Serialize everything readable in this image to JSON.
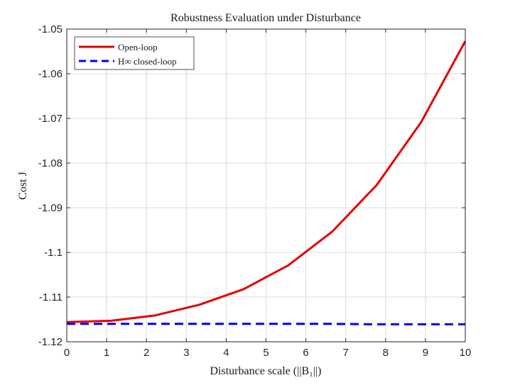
{
  "chart_data": {
    "type": "line",
    "title": "Robustness Evaluation under Disturbance",
    "xlabel": "Disturbance scale (||B₁||)",
    "ylabel": "Cost J",
    "xlim": [
      0,
      10
    ],
    "ylim": [
      -1.12,
      -1.05
    ],
    "x_ticks": [
      "0",
      "1",
      "2",
      "3",
      "4",
      "5",
      "6",
      "7",
      "8",
      "9",
      "10"
    ],
    "y_ticks": [
      "-1.05",
      "-1.06",
      "-1.07",
      "-1.08",
      "-1.09",
      "-1.1",
      "-1.11",
      "-1.12"
    ],
    "grid": true,
    "legend_position": "top-left",
    "x": [
      0,
      1.111,
      2.222,
      3.333,
      4.444,
      5.556,
      6.667,
      7.778,
      8.889,
      10
    ],
    "series": [
      {
        "name": "Open-loop",
        "color": "#e60000",
        "style": "solid",
        "values": [
          -1.1156,
          -1.1153,
          -1.1141,
          -1.1117,
          -1.1082,
          -1.1029,
          -1.0953,
          -1.0849,
          -1.0709,
          -1.0527
        ]
      },
      {
        "name": "H∞ closed-loop",
        "color": "#0000ff",
        "style": "dashed",
        "values": [
          -1.116,
          -1.116,
          -1.116,
          -1.116,
          -1.116,
          -1.116,
          -1.116,
          -1.1161,
          -1.1161,
          -1.1161
        ]
      }
    ]
  }
}
